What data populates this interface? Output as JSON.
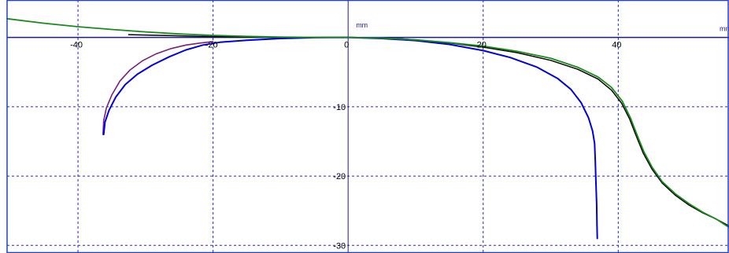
{
  "chart_data": {
    "type": "line",
    "title": "",
    "xlabel": "mm",
    "ylabel": "mm",
    "xlim": [
      -50.5,
      56.4
    ],
    "ylim": [
      -31.1,
      5.4
    ],
    "grid": true,
    "x_ticks": [
      {
        "value": -40,
        "label": "-40"
      },
      {
        "value": -20,
        "label": "-20"
      },
      {
        "value": 0,
        "label": "0"
      },
      {
        "value": 20,
        "label": "20"
      },
      {
        "value": 40,
        "label": "40"
      }
    ],
    "y_ticks": [
      {
        "value": -10,
        "label": "-10"
      },
      {
        "value": -20,
        "label": "-20"
      },
      {
        "value": -30,
        "label": "-30"
      }
    ],
    "series": [
      {
        "color": "#7a1f7a",
        "width": 1.6,
        "points": [
          [
            -36.3,
            -14.0
          ],
          [
            -36.2,
            -12.0
          ],
          [
            -35.8,
            -10.2
          ],
          [
            -35.0,
            -8.3
          ],
          [
            -33.8,
            -6.3
          ],
          [
            -32.3,
            -4.7
          ],
          [
            -30.5,
            -3.4
          ],
          [
            -28.5,
            -2.4
          ],
          [
            -26.2,
            -1.6
          ],
          [
            -24.0,
            -1.1
          ],
          [
            -21.8,
            -0.8
          ],
          [
            -20.0,
            -0.6
          ]
        ]
      },
      {
        "color": "#0000e0",
        "width": 2,
        "points": [
          [
            -36.2,
            -14.0
          ],
          [
            -36.0,
            -12.2
          ],
          [
            -35.4,
            -10.5
          ],
          [
            -34.4,
            -8.6
          ],
          [
            -33.0,
            -6.8
          ],
          [
            -31.2,
            -5.3
          ],
          [
            -29.0,
            -4.0
          ],
          [
            -26.5,
            -2.8
          ],
          [
            -24.0,
            -1.8
          ],
          [
            -21.5,
            -1.1
          ],
          [
            -19.0,
            -0.7
          ],
          [
            -15.0,
            -0.4
          ],
          [
            -10.0,
            -0.15
          ],
          [
            -5.0,
            -0.03
          ],
          [
            0,
            0
          ],
          [
            5.0,
            -0.15
          ],
          [
            10.0,
            -0.45
          ],
          [
            15.0,
            -1.0
          ],
          [
            20.0,
            -1.9
          ],
          [
            24.0,
            -2.9
          ],
          [
            28.0,
            -4.3
          ],
          [
            31.0,
            -5.9
          ],
          [
            33.0,
            -7.5
          ],
          [
            34.5,
            -9.4
          ],
          [
            35.6,
            -11.6
          ],
          [
            36.2,
            -13.5
          ],
          [
            36.5,
            -15.3
          ],
          [
            36.6,
            -18.0
          ],
          [
            36.7,
            -21.0
          ],
          [
            36.8,
            -24.0
          ],
          [
            36.85,
            -27.0
          ],
          [
            36.9,
            -29.0
          ]
        ]
      },
      {
        "color": "#000000",
        "width": 1.5,
        "points": [
          [
            -32.5,
            0.4
          ],
          [
            -28.0,
            0.3
          ],
          [
            -22.0,
            0.15
          ],
          [
            -15.0,
            0.05
          ],
          [
            -8.0,
            0.0
          ],
          [
            0,
            0
          ],
          [
            8.0,
            -0.2
          ],
          [
            15.0,
            -0.8
          ],
          [
            20.0,
            -1.4
          ],
          [
            25.0,
            -2.2
          ],
          [
            30.0,
            -3.3
          ],
          [
            34.0,
            -4.6
          ],
          [
            37.0,
            -6.0
          ],
          [
            39.0,
            -7.6
          ],
          [
            40.5,
            -9.5
          ],
          [
            41.7,
            -11.8
          ],
          [
            42.7,
            -14.3
          ],
          [
            43.7,
            -16.7
          ],
          [
            45.0,
            -19.0
          ],
          [
            46.5,
            -21.0
          ],
          [
            48.5,
            -22.8
          ],
          [
            50.5,
            -24.2
          ],
          [
            52.5,
            -25.3
          ],
          [
            54.5,
            -26.2
          ],
          [
            56.4,
            -27.2
          ]
        ]
      },
      {
        "color": "#1a8a1a",
        "width": 1.8,
        "points": [
          [
            -50.5,
            2.7
          ],
          [
            -45.0,
            2.05
          ],
          [
            -40.0,
            1.55
          ],
          [
            -35.0,
            1.15
          ],
          [
            -30.0,
            0.8
          ],
          [
            -25.0,
            0.5
          ],
          [
            -20.0,
            0.3
          ],
          [
            -15.0,
            0.15
          ],
          [
            -10.0,
            0.05
          ],
          [
            -5.0,
            0.0
          ],
          [
            0,
            0
          ],
          [
            5.0,
            -0.1
          ],
          [
            10.0,
            -0.35
          ],
          [
            15.0,
            -0.75
          ],
          [
            20.0,
            -1.25
          ],
          [
            25.0,
            -2.0
          ],
          [
            30.0,
            -3.0
          ],
          [
            34.0,
            -4.3
          ],
          [
            37.0,
            -5.7
          ],
          [
            39.0,
            -7.2
          ],
          [
            40.6,
            -9.2
          ],
          [
            41.8,
            -11.6
          ],
          [
            42.8,
            -14.1
          ],
          [
            43.8,
            -16.5
          ],
          [
            45.0,
            -18.7
          ],
          [
            46.5,
            -20.8
          ],
          [
            48.5,
            -22.6
          ],
          [
            50.5,
            -24.0
          ],
          [
            52.5,
            -25.2
          ],
          [
            54.5,
            -26.2
          ],
          [
            56.4,
            -27.4
          ]
        ]
      }
    ]
  }
}
